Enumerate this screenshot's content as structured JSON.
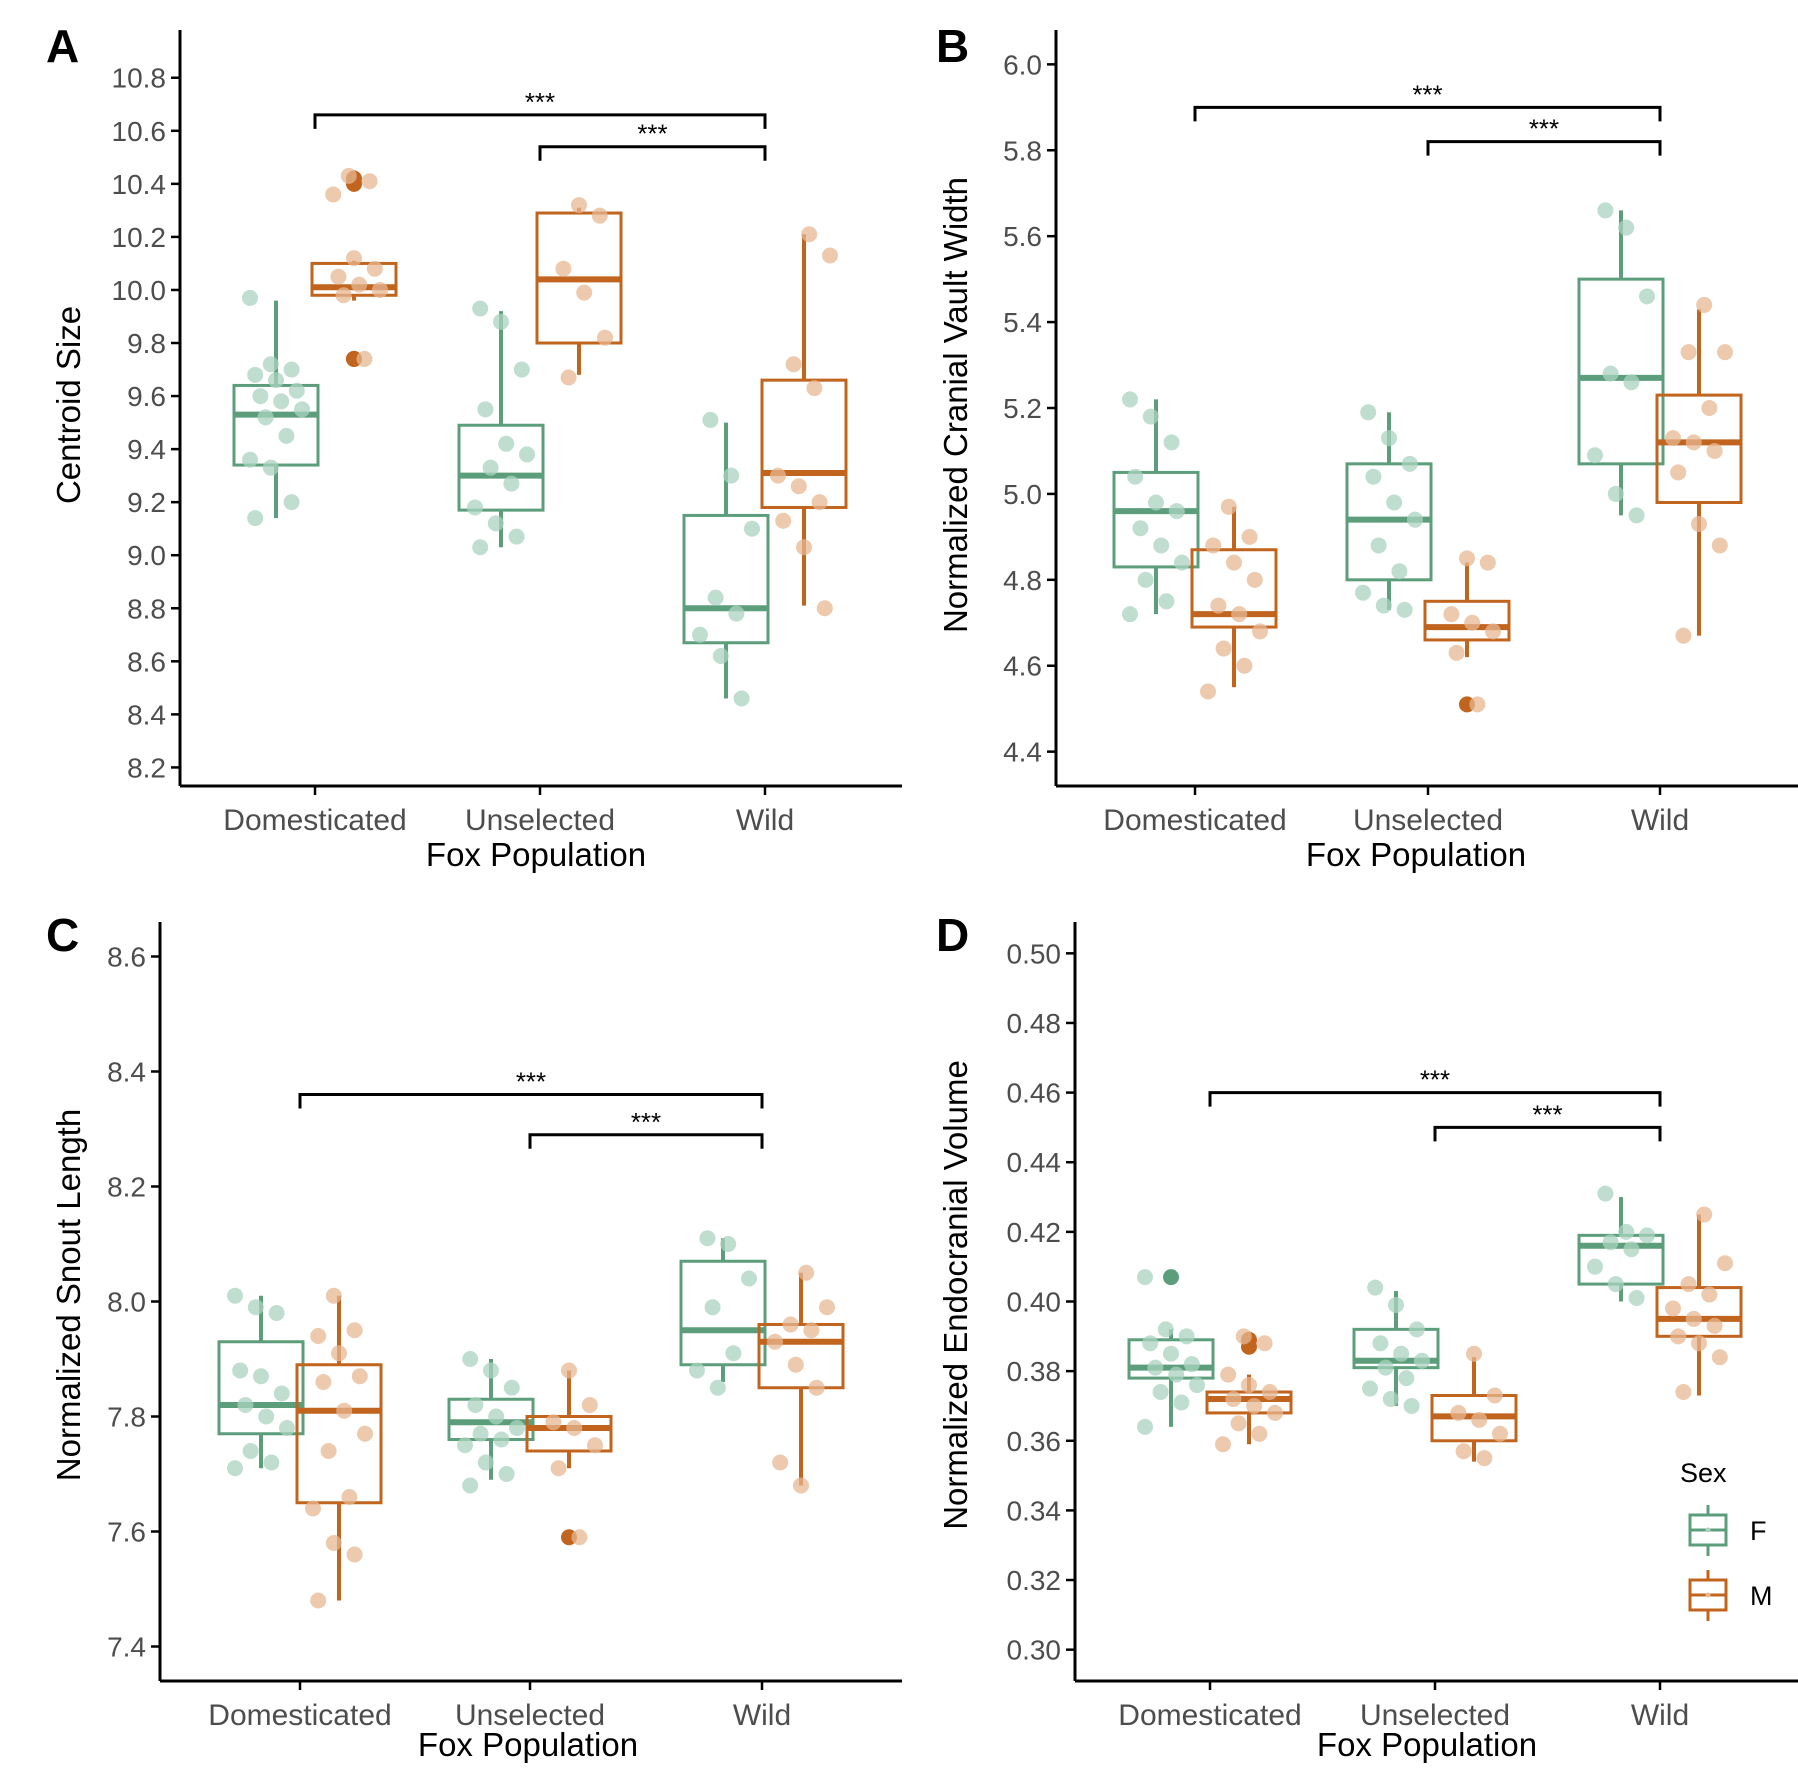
{
  "figure": {
    "shared_xlabel": "Fox Population",
    "populations": [
      "Domesticated",
      "Unselected",
      "Wild"
    ],
    "legend": {
      "title": "Sex",
      "items": [
        {
          "label": "F",
          "color": "#5c9e7c"
        },
        {
          "label": "M",
          "color": "#c0641e"
        }
      ]
    },
    "colors": {
      "F": "#5c9e7c",
      "M": "#c0641e",
      "F_point": "#a9d3bf",
      "M_point": "#e7b791",
      "axis": "#000000",
      "tick_text": "#4d4d4d"
    }
  },
  "chart_data": [
    {
      "panel": "A",
      "type": "box",
      "ylabel": "Centroid Size",
      "xlabel": "Fox Population",
      "categories": [
        "Domesticated",
        "Unselected",
        "Wild"
      ],
      "ylim": [
        8.13,
        10.98
      ],
      "yticks": [
        "8.2",
        "8.4",
        "8.6",
        "8.8",
        "9.0",
        "9.2",
        "9.4",
        "9.6",
        "9.8",
        "10.0",
        "10.2",
        "10.4",
        "10.6",
        "10.8"
      ],
      "series": [
        {
          "name": "F",
          "boxes": [
            {
              "q1": 9.34,
              "median": 9.53,
              "q3": 9.64,
              "lo": 9.14,
              "hi": 9.96,
              "outliers": [],
              "points": [
                9.97,
                9.72,
                9.7,
                9.68,
                9.66,
                9.62,
                9.6,
                9.58,
                9.55,
                9.52,
                9.45,
                9.36,
                9.33,
                9.2,
                9.14
              ]
            },
            {
              "q1": 9.17,
              "median": 9.3,
              "q3": 9.49,
              "lo": 9.03,
              "hi": 9.92,
              "outliers": [],
              "points": [
                9.93,
                9.88,
                9.7,
                9.55,
                9.42,
                9.38,
                9.33,
                9.27,
                9.18,
                9.12,
                9.07,
                9.03
              ]
            },
            {
              "q1": 8.67,
              "median": 8.8,
              "q3": 9.15,
              "lo": 8.46,
              "hi": 9.5,
              "outliers": [],
              "points": [
                9.51,
                9.3,
                9.1,
                8.84,
                8.78,
                8.7,
                8.62,
                8.46
              ]
            }
          ]
        },
        {
          "name": "M",
          "boxes": [
            {
              "q1": 9.98,
              "median": 10.01,
              "q3": 10.1,
              "lo": 9.96,
              "hi": 10.11,
              "outliers": [
                10.42,
                10.4,
                9.74,
                9.74
              ],
              "points": [
                10.43,
                10.41,
                10.36,
                10.12,
                10.08,
                10.05,
                10.02,
                10.0,
                9.98,
                9.74
              ]
            },
            {
              "q1": 9.8,
              "median": 10.04,
              "q3": 10.29,
              "lo": 9.68,
              "hi": 10.31,
              "outliers": [],
              "points": [
                10.32,
                10.28,
                10.08,
                9.99,
                9.82,
                9.67
              ]
            },
            {
              "q1": 9.18,
              "median": 9.31,
              "q3": 9.66,
              "lo": 8.81,
              "hi": 10.21,
              "outliers": [],
              "points": [
                10.21,
                10.13,
                9.72,
                9.63,
                9.3,
                9.26,
                9.2,
                9.13,
                9.03,
                8.8
              ]
            }
          ]
        }
      ],
      "annotations": [
        {
          "from": "Domesticated",
          "to": "Wild",
          "y": 10.66,
          "label": "***"
        },
        {
          "from": "Unselected",
          "to": "Wild",
          "y": 10.54,
          "label": "***"
        }
      ]
    },
    {
      "panel": "B",
      "type": "box",
      "ylabel": "Normalized Cranial Vault Width",
      "xlabel": "Fox Population",
      "categories": [
        "Domesticated",
        "Unselected",
        "Wild"
      ],
      "ylim": [
        4.32,
        6.08
      ],
      "yticks": [
        "4.4",
        "4.6",
        "4.8",
        "5.0",
        "5.2",
        "5.4",
        "5.6",
        "5.8",
        "6.0"
      ],
      "series": [
        {
          "name": "F",
          "boxes": [
            {
              "q1": 4.83,
              "median": 4.96,
              "q3": 5.05,
              "lo": 4.72,
              "hi": 5.22,
              "outliers": [],
              "points": [
                5.22,
                5.18,
                5.12,
                5.04,
                4.98,
                4.96,
                4.92,
                4.88,
                4.84,
                4.8,
                4.75,
                4.72
              ]
            },
            {
              "q1": 4.8,
              "median": 4.94,
              "q3": 5.07,
              "lo": 4.73,
              "hi": 5.19,
              "outliers": [],
              "points": [
                5.19,
                5.13,
                5.07,
                5.04,
                4.98,
                4.94,
                4.88,
                4.82,
                4.77,
                4.74,
                4.73
              ]
            },
            {
              "q1": 5.07,
              "median": 5.27,
              "q3": 5.5,
              "lo": 4.95,
              "hi": 5.66,
              "outliers": [],
              "points": [
                5.66,
                5.62,
                5.46,
                5.28,
                5.26,
                5.09,
                5.0,
                4.95
              ]
            }
          ]
        },
        {
          "name": "M",
          "boxes": [
            {
              "q1": 4.69,
              "median": 4.72,
              "q3": 4.87,
              "lo": 4.55,
              "hi": 4.97,
              "outliers": [],
              "points": [
                4.97,
                4.9,
                4.88,
                4.84,
                4.8,
                4.74,
                4.72,
                4.68,
                4.64,
                4.6,
                4.54
              ]
            },
            {
              "q1": 4.66,
              "median": 4.69,
              "q3": 4.75,
              "lo": 4.62,
              "hi": 4.84,
              "outliers": [
                4.51
              ],
              "points": [
                4.85,
                4.84,
                4.72,
                4.7,
                4.68,
                4.63,
                4.51
              ]
            },
            {
              "q1": 4.98,
              "median": 5.12,
              "q3": 5.23,
              "lo": 4.67,
              "hi": 5.43,
              "outliers": [],
              "points": [
                5.44,
                5.33,
                5.33,
                5.2,
                5.13,
                5.12,
                5.1,
                5.05,
                4.93,
                4.88,
                4.67
              ]
            }
          ]
        }
      ],
      "annotations": [
        {
          "from": "Domesticated",
          "to": "Wild",
          "y": 5.9,
          "label": "***"
        },
        {
          "from": "Unselected",
          "to": "Wild",
          "y": 5.82,
          "label": "***"
        }
      ]
    },
    {
      "panel": "C",
      "type": "box",
      "ylabel": "Normalized Snout Length",
      "xlabel": "Fox Population",
      "categories": [
        "Domesticated",
        "Unselected",
        "Wild"
      ],
      "ylim": [
        7.34,
        8.66
      ],
      "yticks": [
        "7.4",
        "7.6",
        "7.8",
        "8.0",
        "8.2",
        "8.4",
        "8.6"
      ],
      "series": [
        {
          "name": "F",
          "boxes": [
            {
              "q1": 7.77,
              "median": 7.82,
              "q3": 7.93,
              "lo": 7.71,
              "hi": 8.01,
              "outliers": [],
              "points": [
                8.01,
                7.99,
                7.98,
                7.88,
                7.87,
                7.84,
                7.82,
                7.8,
                7.78,
                7.74,
                7.72,
                7.71
              ]
            },
            {
              "q1": 7.76,
              "median": 7.79,
              "q3": 7.83,
              "lo": 7.69,
              "hi": 7.9,
              "outliers": [],
              "points": [
                7.9,
                7.88,
                7.85,
                7.82,
                7.8,
                7.78,
                7.77,
                7.76,
                7.75,
                7.72,
                7.7,
                7.68
              ]
            },
            {
              "q1": 7.89,
              "median": 7.95,
              "q3": 8.07,
              "lo": 7.86,
              "hi": 8.11,
              "outliers": [],
              "points": [
                8.11,
                8.1,
                8.04,
                7.99,
                7.91,
                7.88,
                7.85
              ]
            }
          ]
        },
        {
          "name": "M",
          "boxes": [
            {
              "q1": 7.65,
              "median": 7.81,
              "q3": 7.89,
              "lo": 7.48,
              "hi": 8.01,
              "outliers": [],
              "points": [
                8.01,
                7.95,
                7.94,
                7.91,
                7.87,
                7.86,
                7.81,
                7.77,
                7.74,
                7.66,
                7.64,
                7.58,
                7.56,
                7.48
              ]
            },
            {
              "q1": 7.74,
              "median": 7.78,
              "q3": 7.8,
              "lo": 7.71,
              "hi": 7.88,
              "outliers": [
                7.59
              ],
              "points": [
                7.88,
                7.82,
                7.79,
                7.78,
                7.75,
                7.71,
                7.59
              ]
            },
            {
              "q1": 7.85,
              "median": 7.93,
              "q3": 7.96,
              "lo": 7.68,
              "hi": 8.05,
              "outliers": [],
              "points": [
                8.05,
                7.99,
                7.96,
                7.95,
                7.93,
                7.89,
                7.85,
                7.72,
                7.68
              ]
            }
          ]
        }
      ],
      "annotations": [
        {
          "from": "Domesticated",
          "to": "Wild",
          "y": 8.36,
          "label": "***"
        },
        {
          "from": "Unselected",
          "to": "Wild",
          "y": 8.29,
          "label": "***"
        }
      ]
    },
    {
      "panel": "D",
      "type": "box",
      "ylabel": "Normalized Endocranial Volume",
      "xlabel": "Fox Population",
      "categories": [
        "Domesticated",
        "Unselected",
        "Wild"
      ],
      "ylim": [
        0.291,
        0.509
      ],
      "yticks": [
        "0.30",
        "0.32",
        "0.34",
        "0.36",
        "0.38",
        "0.40",
        "0.42",
        "0.44",
        "0.46",
        "0.48",
        "0.50"
      ],
      "series": [
        {
          "name": "F",
          "boxes": [
            {
              "q1": 0.378,
              "median": 0.381,
              "q3": 0.389,
              "lo": 0.364,
              "hi": 0.392,
              "outliers": [
                0.407
              ],
              "points": [
                0.407,
                0.392,
                0.39,
                0.388,
                0.385,
                0.382,
                0.381,
                0.379,
                0.376,
                0.374,
                0.371,
                0.364
              ]
            },
            {
              "q1": 0.381,
              "median": 0.383,
              "q3": 0.392,
              "lo": 0.37,
              "hi": 0.403,
              "outliers": [],
              "points": [
                0.404,
                0.399,
                0.392,
                0.388,
                0.385,
                0.383,
                0.381,
                0.378,
                0.375,
                0.372,
                0.37
              ]
            },
            {
              "q1": 0.405,
              "median": 0.416,
              "q3": 0.419,
              "lo": 0.4,
              "hi": 0.43,
              "outliers": [],
              "points": [
                0.431,
                0.42,
                0.419,
                0.417,
                0.415,
                0.41,
                0.405,
                0.401
              ]
            }
          ]
        },
        {
          "name": "M",
          "boxes": [
            {
              "q1": 0.368,
              "median": 0.372,
              "q3": 0.374,
              "lo": 0.359,
              "hi": 0.379,
              "outliers": [
                0.389,
                0.387
              ],
              "points": [
                0.39,
                0.388,
                0.379,
                0.376,
                0.374,
                0.372,
                0.37,
                0.368,
                0.365,
                0.362,
                0.359
              ]
            },
            {
              "q1": 0.36,
              "median": 0.367,
              "q3": 0.373,
              "lo": 0.354,
              "hi": 0.384,
              "outliers": [],
              "points": [
                0.385,
                0.373,
                0.368,
                0.366,
                0.362,
                0.357,
                0.355
              ]
            },
            {
              "q1": 0.39,
              "median": 0.395,
              "q3": 0.404,
              "lo": 0.373,
              "hi": 0.425,
              "outliers": [],
              "points": [
                0.425,
                0.411,
                0.405,
                0.402,
                0.398,
                0.395,
                0.393,
                0.39,
                0.388,
                0.384,
                0.374
              ]
            }
          ]
        }
      ],
      "annotations": [
        {
          "from": "Domesticated",
          "to": "Wild",
          "y": 0.46,
          "label": "***"
        },
        {
          "from": "Unselected",
          "to": "Wild",
          "y": 0.45,
          "label": "***"
        }
      ]
    }
  ]
}
